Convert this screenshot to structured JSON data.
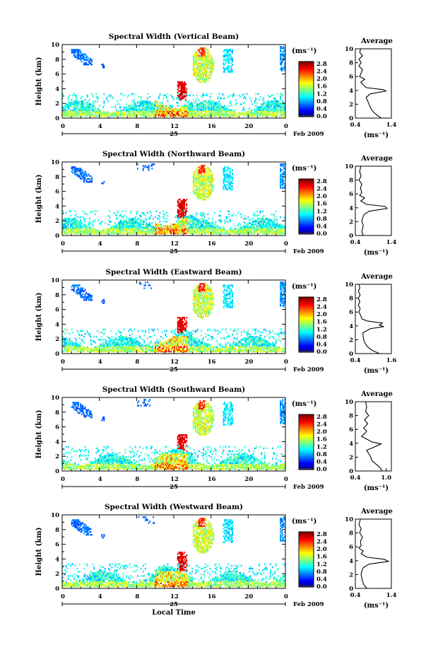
{
  "chart_data": [
    {
      "type": "heatmap",
      "title": "Spectral Width (Vertical Beam)",
      "ylabel": "Height (km)",
      "xticks": [
        "0",
        "4",
        "8",
        "12",
        "16",
        "20",
        "0"
      ],
      "date_label": "25",
      "month_label": "Feb 2009",
      "xlim": [
        0,
        24
      ],
      "ylim": [
        0,
        10
      ],
      "yticks": [
        "0",
        "2",
        "4",
        "6",
        "8",
        "10"
      ],
      "colorbar": {
        "unit": "(ms⁻¹)",
        "ticks": [
          "2.8",
          "2.4",
          "2.0",
          "1.6",
          "1.2",
          "0.8",
          "0.4",
          "0.0"
        ],
        "range": [
          0.0,
          2.8
        ]
      },
      "average": {
        "title": "Average",
        "xlabel": "(ms⁻¹)",
        "xticks": [
          "0.4",
          "1.4"
        ],
        "xlim": [
          0.4,
          1.4
        ],
        "profile": [
          [
            0.0,
            1.12
          ],
          [
            0.5,
            0.98
          ],
          [
            1.0,
            0.88
          ],
          [
            1.5,
            0.82
          ],
          [
            2.0,
            0.78
          ],
          [
            2.5,
            0.74
          ],
          [
            3.0,
            0.7
          ],
          [
            3.5,
            0.82
          ],
          [
            3.9,
            1.25
          ],
          [
            4.1,
            1.18
          ],
          [
            4.4,
            0.7
          ],
          [
            4.8,
            0.62
          ],
          [
            5.2,
            0.55
          ],
          [
            5.6,
            0.66
          ],
          [
            6.0,
            0.52
          ],
          [
            6.5,
            0.56
          ],
          [
            7.0,
            0.6
          ],
          [
            7.5,
            0.5
          ],
          [
            8.0,
            0.56
          ],
          [
            8.5,
            0.5
          ],
          [
            9.0,
            0.6
          ],
          [
            9.5,
            0.52
          ],
          [
            10.0,
            0.55
          ]
        ]
      }
    },
    {
      "type": "heatmap",
      "title": "Spectral Width (Northward Beam)",
      "ylabel": "Height (km)",
      "xticks": [
        "0",
        "4",
        "8",
        "12",
        "16",
        "20",
        "0"
      ],
      "date_label": "25",
      "month_label": "Feb 2009",
      "xlim": [
        0,
        24
      ],
      "ylim": [
        0,
        10
      ],
      "yticks": [
        "0",
        "2",
        "4",
        "6",
        "8",
        "10"
      ],
      "colorbar": {
        "unit": "(ms⁻¹)",
        "ticks": [
          "2.8",
          "2.4",
          "2.0",
          "1.6",
          "1.2",
          "0.8",
          "0.4",
          "0.0"
        ],
        "range": [
          0.0,
          2.8
        ]
      },
      "average": {
        "title": "Average",
        "xlabel": "(ms⁻¹)",
        "xticks": [
          "0.4",
          "1.4"
        ],
        "xlim": [
          0.4,
          1.4
        ],
        "profile": [
          [
            0.0,
            0.62
          ],
          [
            0.5,
            0.58
          ],
          [
            1.0,
            0.6
          ],
          [
            1.5,
            0.62
          ],
          [
            2.0,
            0.58
          ],
          [
            2.5,
            0.6
          ],
          [
            3.0,
            0.64
          ],
          [
            3.5,
            0.78
          ],
          [
            3.9,
            1.28
          ],
          [
            4.2,
            1.22
          ],
          [
            4.5,
            0.7
          ],
          [
            5.0,
            0.55
          ],
          [
            5.4,
            0.66
          ],
          [
            5.8,
            0.52
          ],
          [
            6.2,
            0.58
          ],
          [
            6.8,
            0.54
          ],
          [
            7.4,
            0.58
          ],
          [
            8.0,
            0.5
          ],
          [
            8.6,
            0.56
          ],
          [
            9.2,
            0.52
          ],
          [
            10.0,
            0.55
          ]
        ]
      }
    },
    {
      "type": "heatmap",
      "title": "Spectral Width (Eastward Beam)",
      "ylabel": "Height (km)",
      "xticks": [
        "0",
        "4",
        "8",
        "12",
        "16",
        "20",
        "0"
      ],
      "date_label": "25",
      "month_label": "Feb 2009",
      "xlim": [
        0,
        24
      ],
      "ylim": [
        0,
        10
      ],
      "yticks": [
        "0",
        "2",
        "4",
        "6",
        "8",
        "10"
      ],
      "colorbar": {
        "unit": "(ms⁻¹)",
        "ticks": [
          "2.8",
          "2.4",
          "2.0",
          "1.6",
          "1.2",
          "0.8",
          "0.4",
          "0.0"
        ],
        "range": [
          0.0,
          2.8
        ]
      },
      "average": {
        "title": "Average",
        "xlabel": "(ms⁻¹)",
        "xticks": [
          "0.4",
          "1.6"
        ],
        "xlim": [
          0.4,
          1.6
        ],
        "profile": [
          [
            0.0,
            1.2
          ],
          [
            0.5,
            0.95
          ],
          [
            1.0,
            0.8
          ],
          [
            1.5,
            0.72
          ],
          [
            2.0,
            0.68
          ],
          [
            2.5,
            0.66
          ],
          [
            3.0,
            0.65
          ],
          [
            3.6,
            0.9
          ],
          [
            3.9,
            1.35
          ],
          [
            4.1,
            1.2
          ],
          [
            4.4,
            1.3
          ],
          [
            4.7,
            0.8
          ],
          [
            5.0,
            0.62
          ],
          [
            5.5,
            0.58
          ],
          [
            6.0,
            0.52
          ],
          [
            6.5,
            0.56
          ],
          [
            7.0,
            0.5
          ],
          [
            7.5,
            0.55
          ],
          [
            8.0,
            0.5
          ],
          [
            8.5,
            0.56
          ],
          [
            9.0,
            0.5
          ],
          [
            9.5,
            0.55
          ],
          [
            10.0,
            0.52
          ]
        ]
      }
    },
    {
      "type": "heatmap",
      "title": "Spectral Width (Southward Beam)",
      "ylabel": "Height (km)",
      "xticks": [
        "0",
        "4",
        "8",
        "12",
        "16",
        "20",
        "0"
      ],
      "date_label": "25",
      "month_label": "Feb 2009",
      "xlim": [
        0,
        24
      ],
      "ylim": [
        0,
        10
      ],
      "yticks": [
        "0",
        "2",
        "4",
        "6",
        "8",
        "10"
      ],
      "colorbar": {
        "unit": "(ms⁻¹)",
        "ticks": [
          "2.8",
          "2.4",
          "2.0",
          "1.6",
          "1.2",
          "0.8",
          "0.4",
          "0.0"
        ],
        "range": [
          0.0,
          2.8
        ]
      },
      "average": {
        "title": "Average",
        "xlabel": "(ms⁻¹)",
        "xticks": [
          "0.4",
          "1.0"
        ],
        "xlim": [
          0.4,
          1.1
        ],
        "profile": [
          [
            0.0,
            0.92
          ],
          [
            0.5,
            0.88
          ],
          [
            1.0,
            0.8
          ],
          [
            1.5,
            0.72
          ],
          [
            2.0,
            0.7
          ],
          [
            2.5,
            0.66
          ],
          [
            3.0,
            0.62
          ],
          [
            3.5,
            0.78
          ],
          [
            3.9,
            0.9
          ],
          [
            4.2,
            0.72
          ],
          [
            4.6,
            0.62
          ],
          [
            5.0,
            0.52
          ],
          [
            5.4,
            0.58
          ],
          [
            5.8,
            0.62
          ],
          [
            6.2,
            0.56
          ],
          [
            6.8,
            0.64
          ],
          [
            7.4,
            0.58
          ],
          [
            8.0,
            0.66
          ],
          [
            8.6,
            0.6
          ],
          [
            9.2,
            0.62
          ],
          [
            10.0,
            0.6
          ]
        ]
      }
    },
    {
      "type": "heatmap",
      "title": "Spectral Width (Westward Beam)",
      "ylabel": "Height (km)",
      "xlabel": "Local Time",
      "xticks": [
        "0",
        "4",
        "8",
        "12",
        "16",
        "20",
        "0"
      ],
      "date_label": "25",
      "month_label": "Feb 2009",
      "xlim": [
        0,
        24
      ],
      "ylim": [
        0,
        10
      ],
      "yticks": [
        "0",
        "2",
        "4",
        "6",
        "8",
        "10"
      ],
      "colorbar": {
        "unit": "(ms⁻¹)",
        "ticks": [
          "2.8",
          "2.4",
          "2.0",
          "1.6",
          "1.2",
          "0.8",
          "0.4",
          "0.0"
        ],
        "range": [
          0.0,
          2.8
        ]
      },
      "average": {
        "title": "Average",
        "xlabel": "(ms⁻¹)",
        "xticks": [
          "0.4",
          "1.4"
        ],
        "xlim": [
          0.4,
          1.4
        ],
        "profile": [
          [
            0.0,
            0.72
          ],
          [
            0.5,
            0.64
          ],
          [
            1.0,
            0.6
          ],
          [
            1.5,
            0.58
          ],
          [
            2.0,
            0.56
          ],
          [
            2.5,
            0.58
          ],
          [
            3.0,
            0.62
          ],
          [
            3.5,
            0.78
          ],
          [
            3.9,
            1.32
          ],
          [
            4.2,
            1.2
          ],
          [
            4.5,
            0.72
          ],
          [
            5.0,
            0.56
          ],
          [
            5.4,
            0.62
          ],
          [
            5.8,
            0.5
          ],
          [
            6.2,
            0.56
          ],
          [
            6.8,
            0.54
          ],
          [
            7.4,
            0.6
          ],
          [
            8.0,
            0.52
          ],
          [
            8.6,
            0.56
          ],
          [
            9.2,
            0.5
          ],
          [
            10.0,
            0.54
          ]
        ]
      }
    }
  ]
}
